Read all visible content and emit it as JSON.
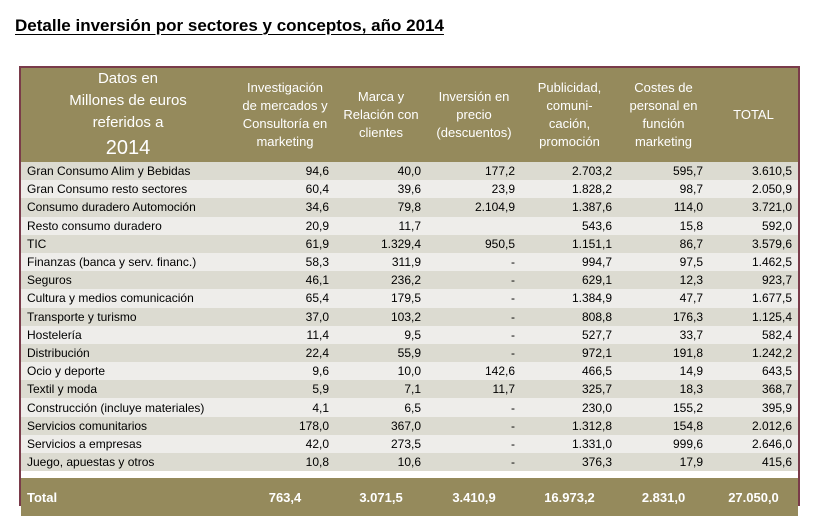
{
  "title": "Detalle inversión por sectores y conceptos, año 2014",
  "header": {
    "corner_lines": [
      "Datos en",
      "Millones de euros",
      "referidos a"
    ],
    "corner_year": "2014",
    "columns": [
      [
        "Investigación",
        "de mercados y",
        "Consultoría  en",
        "marketing"
      ],
      [
        "Marca y",
        "Relación con",
        "clientes"
      ],
      [
        "Inversión en",
        "precio",
        "(descuentos)"
      ],
      [
        "Publicidad,",
        "comuni-",
        "cación,",
        "promoción"
      ],
      [
        "Costes de",
        "personal en",
        "función",
        "marketing"
      ],
      [
        "TOTAL"
      ]
    ]
  },
  "rows": [
    {
      "name": "Gran Consumo Alim y Bebidas",
      "values": [
        "94,6",
        "40,0",
        "177,2",
        "2.703,2",
        "595,7",
        "3.610,5"
      ]
    },
    {
      "name": "Gran Consumo resto sectores",
      "values": [
        "60,4",
        "39,6",
        "23,9",
        "1.828,2",
        "98,7",
        "2.050,9"
      ]
    },
    {
      "name": "Consumo duradero Automoción",
      "values": [
        "34,6",
        "79,8",
        "2.104,9",
        "1.387,6",
        "114,0",
        "3.721,0"
      ]
    },
    {
      "name": "Resto consumo duradero",
      "values": [
        "20,9",
        "11,7",
        "",
        "543,6",
        "15,8",
        "592,0"
      ]
    },
    {
      "name": "TIC",
      "values": [
        "61,9",
        "1.329,4",
        "950,5",
        "1.151,1",
        "86,7",
        "3.579,6"
      ]
    },
    {
      "name": "Finanzas (banca y serv. financ.)",
      "values": [
        "58,3",
        "311,9",
        "-",
        "994,7",
        "97,5",
        "1.462,5"
      ]
    },
    {
      "name": "Seguros",
      "values": [
        "46,1",
        "236,2",
        "-",
        "629,1",
        "12,3",
        "923,7"
      ]
    },
    {
      "name": "Cultura y medios comunicación",
      "values": [
        "65,4",
        "179,5",
        "-",
        "1.384,9",
        "47,7",
        "1.677,5"
      ]
    },
    {
      "name": "Transporte y turismo",
      "values": [
        "37,0",
        "103,2",
        "-",
        "808,8",
        "176,3",
        "1.125,4"
      ]
    },
    {
      "name": "Hostelería",
      "values": [
        "11,4",
        "9,5",
        "-",
        "527,7",
        "33,7",
        "582,4"
      ]
    },
    {
      "name": "Distribución",
      "values": [
        "22,4",
        "55,9",
        "-",
        "972,1",
        "191,8",
        "1.242,2"
      ]
    },
    {
      "name": "Ocio y deporte",
      "values": [
        "9,6",
        "10,0",
        "142,6",
        "466,5",
        "14,9",
        "643,5"
      ]
    },
    {
      "name": "Textil y moda",
      "values": [
        "5,9",
        "7,1",
        "11,7",
        "325,7",
        "18,3",
        "368,7"
      ]
    },
    {
      "name": "Construcción (incluye materiales)",
      "values": [
        "4,1",
        "6,5",
        "-",
        "230,0",
        "155,2",
        "395,9"
      ]
    },
    {
      "name": "Servicios comunitarios",
      "values": [
        "178,0",
        "367,0",
        "-",
        "1.312,8",
        "154,8",
        "2.012,6"
      ]
    },
    {
      "name": "Servicios a empresas",
      "values": [
        "42,0",
        "273,5",
        "-",
        "1.331,0",
        "999,6",
        "2.646,0"
      ]
    },
    {
      "name": "Juego,  apuestas y otros",
      "values": [
        "10,8",
        "10,6",
        "-",
        "376,3",
        "17,9",
        "415,6"
      ]
    }
  ],
  "total": {
    "label": "Total",
    "values": [
      "763,4",
      "3.071,5",
      "3.410,9",
      "16.973,2",
      "2.831,0",
      "27.050,0"
    ]
  },
  "colors": {
    "header_bg": "#958a5c",
    "row_odd": "#dcdbd1",
    "row_even": "#eeedea",
    "frame_border": "#7a3b4a"
  }
}
